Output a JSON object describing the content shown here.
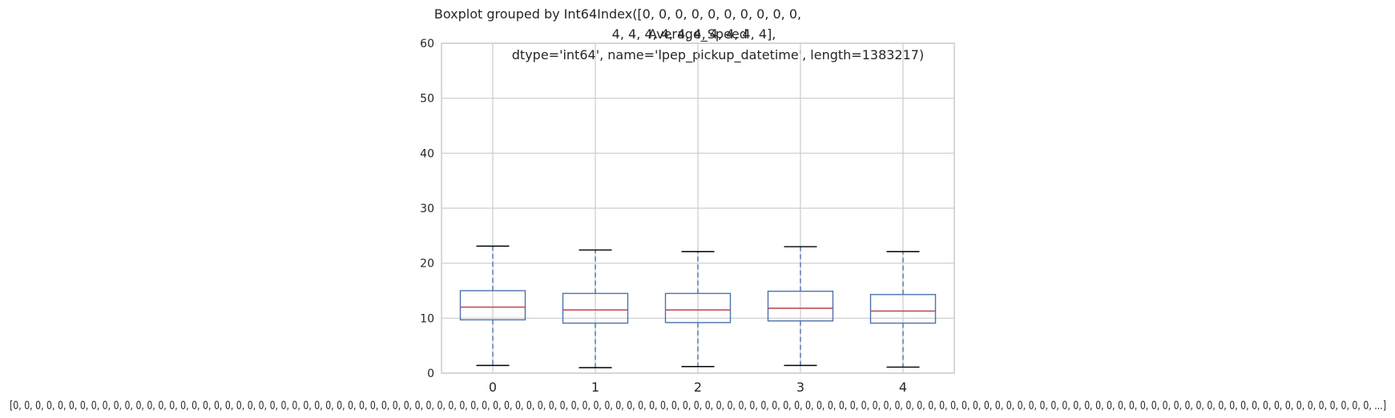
{
  "chart_data": {
    "type": "boxplot",
    "suptitle_lines": [
      "Boxplot grouped by Int64Index([0, 0, 0, 0, 0, 0, 0, 0, 0, 0,",
      "4, 4, 4, 4, 4, 4, 4, 4, 4, 4],",
      "dtype='int64', name='lpep_pickup_datetime', length=1383217)"
    ],
    "title": "Average_Speed",
    "xlabel": "[0, 0, 0, 0, 0, 0, 0, 0, 0, 0, 0, 0, 0, 0, 0, 0, 0, 0, 0, 0, 0, 0, 0, 0, 0, 0, 0, 0, 0, 0, 0, 0, 0, 0, 0, 0, 0, 0, 0, 0, 0, 0, 0, 0, 0, 0, 0, 0, 0, 0, 0, 0, 0, 0, 0, 0, 0, 0, 0, 0, 0, 0, 0, 0, 0, 0, 0, 0, 0, 0, 0, 0, 0, 0, 0, 0, 0, 0, 0, 0, 0, 0, 0, 0, 0, 0, 0, 0, 0, 0, 0, 0, 0, 0, 0, 0, 0, 0, 0, 0, 0, 0, 0, 0, 0, 0, 0, 0, 0, 0, 0, 0, 0, 0, 0, 0, 0, 0, 0, 0, 0, 0, ...]",
    "ylim": [
      0,
      60
    ],
    "yticks": [
      0,
      10,
      20,
      30,
      40,
      50,
      60
    ],
    "grid": true,
    "categories": [
      "0",
      "1",
      "2",
      "3",
      "4"
    ],
    "boxes": [
      {
        "category": "0",
        "whisker_low": 1.4,
        "q1": 9.7,
        "median": 12.0,
        "q3": 15.0,
        "whisker_high": 23.1
      },
      {
        "category": "1",
        "whisker_low": 1.0,
        "q1": 9.1,
        "median": 11.5,
        "q3": 14.5,
        "whisker_high": 22.4
      },
      {
        "category": "2",
        "whisker_low": 1.2,
        "q1": 9.2,
        "median": 11.5,
        "q3": 14.5,
        "whisker_high": 22.1
      },
      {
        "category": "3",
        "whisker_low": 1.4,
        "q1": 9.5,
        "median": 11.8,
        "q3": 14.9,
        "whisker_high": 23.0
      },
      {
        "category": "4",
        "whisker_low": 1.1,
        "q1": 9.1,
        "median": 11.3,
        "q3": 14.3,
        "whisker_high": 22.1
      }
    ],
    "colors": {
      "box": "#4c72b0",
      "whisker": "#4c72b0",
      "cap": "#000000",
      "median": "#c44e52",
      "grid": "#cccccc",
      "frame": "#cccccc"
    }
  }
}
